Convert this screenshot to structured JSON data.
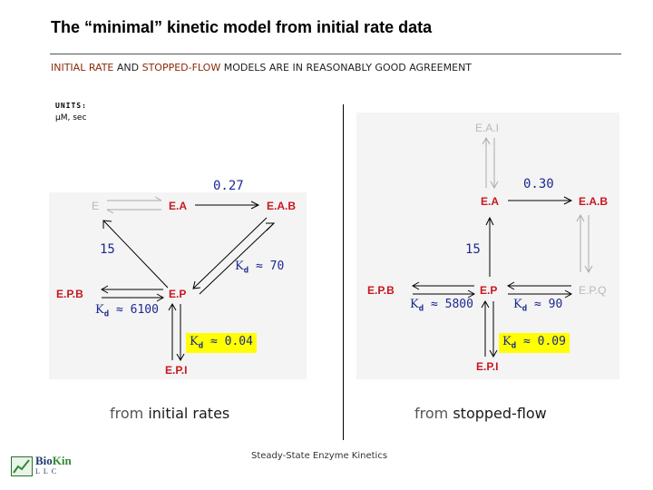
{
  "title": "The “minimal” kinetic model from initial rate data",
  "subtitle": {
    "part1": "INITIAL RATE",
    "part2": " AND ",
    "part3": "STOPPED-FLOW",
    "part4": " MODELS ARE IN REASONABLY GOOD AGREEMENT"
  },
  "units": {
    "label": "UNITS:",
    "value": "μM, sec"
  },
  "left_panel": {
    "nodes": {
      "e": "E",
      "ea": "E.A",
      "eab": "E.A.B",
      "epb": "E.P.B",
      "ep": "E.P",
      "epi": "E.P.I"
    },
    "rate_top": "0.27",
    "rate_left": "15",
    "kd_eab": {
      "k": "K",
      "sub": "d",
      "approx": "≈",
      "value": "70"
    },
    "kd_epb": {
      "k": "K",
      "sub": "d",
      "approx": "≈",
      "value": "6100"
    },
    "kd_epi": {
      "k": "K",
      "sub": "d",
      "approx": "≈",
      "value": "0.04"
    },
    "caption_pre": "from ",
    "caption_main": "initial rates"
  },
  "right_panel": {
    "nodes": {
      "eai": "E.A.I",
      "ea": "E.A",
      "eab": "E.A.B",
      "epb": "E.P.B",
      "ep": "E.P",
      "epq": "E.P.Q",
      "epi": "E.P.I"
    },
    "rate_top": "0.30",
    "rate_left": "15",
    "kd_epb": {
      "k": "K",
      "sub": "d",
      "approx": "≈",
      "value": "5800"
    },
    "kd_epq": {
      "k": "K",
      "sub": "d",
      "approx": "≈",
      "value": "90"
    },
    "kd_epi": {
      "k": "K",
      "sub": "d",
      "approx": "≈",
      "value": "0.09"
    },
    "caption_pre": "from ",
    "caption_main": "stopped-flow"
  },
  "footer": "Steady-State Enzyme Kinetics",
  "logo": {
    "bio": "Bio",
    "kin": "Kin",
    "sub": "LLC"
  },
  "colors": {
    "active_node": "#c8171f",
    "faded_node": "#b8b8b8",
    "numbers": "#1c2a8f",
    "highlight": "#ffff00"
  }
}
